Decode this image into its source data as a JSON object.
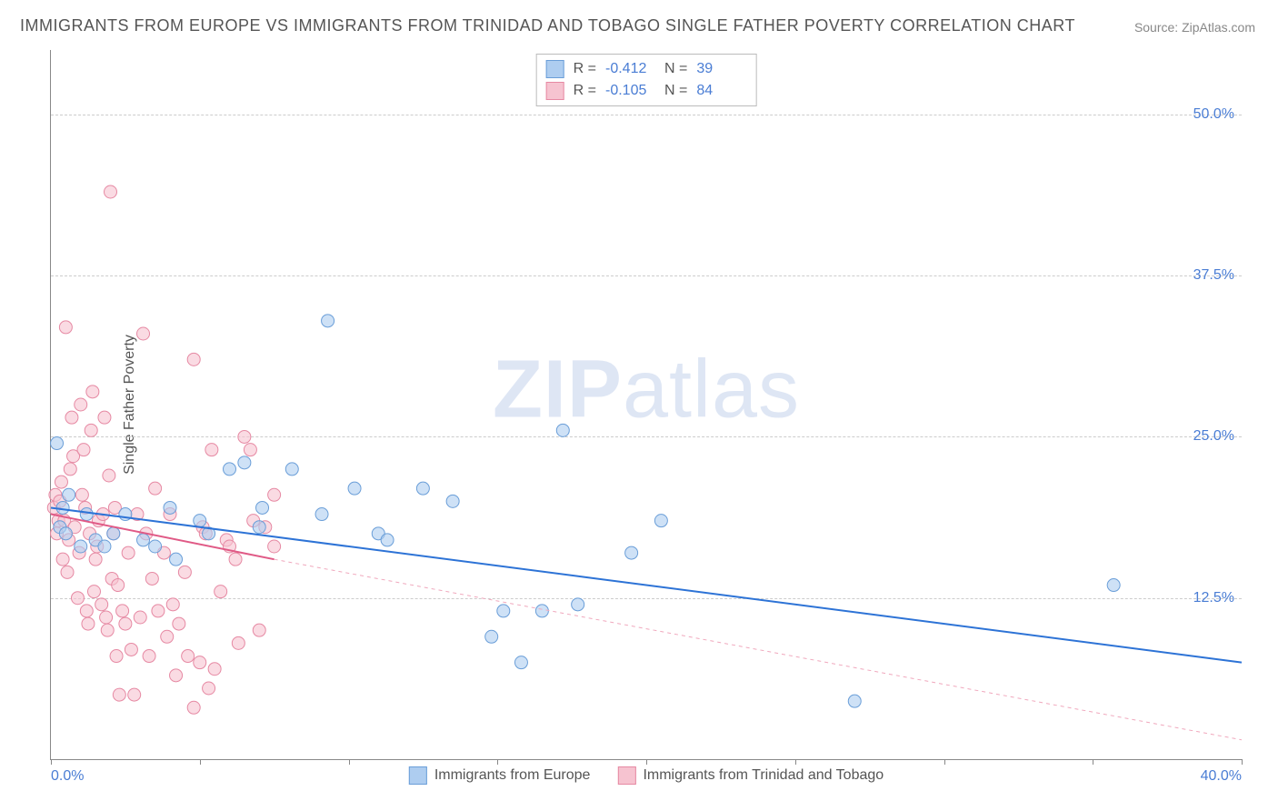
{
  "title": "IMMIGRANTS FROM EUROPE VS IMMIGRANTS FROM TRINIDAD AND TOBAGO SINGLE FATHER POVERTY CORRELATION CHART",
  "source": "Source: ZipAtlas.com",
  "ylabel": "Single Father Poverty",
  "watermark_bold": "ZIP",
  "watermark_light": "atlas",
  "chart": {
    "type": "scatter",
    "xlim": [
      0,
      40
    ],
    "ylim": [
      0,
      55
    ],
    "xticks": [
      0,
      5,
      10,
      15,
      20,
      25,
      30,
      35,
      40
    ],
    "xtick_labels_shown": {
      "0": "0.0%",
      "40": "40.0%"
    },
    "yticks": [
      12.5,
      25.0,
      37.5,
      50.0
    ],
    "ytick_labels": [
      "12.5%",
      "25.0%",
      "37.5%",
      "50.0%"
    ],
    "grid_color": "#cccccc",
    "background_color": "#ffffff",
    "series": [
      {
        "name": "Immigrants from Europe",
        "fill": "#aecdf0",
        "stroke": "#6a9ed8",
        "r_value": "-0.412",
        "n_value": "39",
        "marker_radius": 7,
        "line": {
          "x1": 0,
          "y1": 19.5,
          "x2": 40,
          "y2": 7.5,
          "color": "#2d73d6",
          "width": 2,
          "dash": "none"
        },
        "points": [
          [
            0.2,
            24.5
          ],
          [
            0.3,
            18
          ],
          [
            0.4,
            19.5
          ],
          [
            0.5,
            17.5
          ],
          [
            0.6,
            20.5
          ],
          [
            1.0,
            16.5
          ],
          [
            1.2,
            19
          ],
          [
            1.5,
            17
          ],
          [
            1.8,
            16.5
          ],
          [
            2.1,
            17.5
          ],
          [
            2.5,
            19
          ],
          [
            3.1,
            17
          ],
          [
            3.5,
            16.5
          ],
          [
            4.0,
            19.5
          ],
          [
            4.2,
            15.5
          ],
          [
            5.0,
            18.5
          ],
          [
            5.3,
            17.5
          ],
          [
            6.0,
            22.5
          ],
          [
            6.5,
            23
          ],
          [
            7.0,
            18
          ],
          [
            7.1,
            19.5
          ],
          [
            8.1,
            22.5
          ],
          [
            9.1,
            19
          ],
          [
            9.3,
            34
          ],
          [
            10.2,
            21
          ],
          [
            11.0,
            17.5
          ],
          [
            11.3,
            17
          ],
          [
            12.5,
            21
          ],
          [
            13.5,
            20
          ],
          [
            14.8,
            9.5
          ],
          [
            15.2,
            11.5
          ],
          [
            15.8,
            7.5
          ],
          [
            16.5,
            11.5
          ],
          [
            17.2,
            25.5
          ],
          [
            17.7,
            12
          ],
          [
            19.5,
            16
          ],
          [
            20.5,
            18.5
          ],
          [
            27.0,
            4.5
          ],
          [
            35.7,
            13.5
          ]
        ]
      },
      {
        "name": "Immigrants from Trinidad and Tobago",
        "fill": "#f6c3d0",
        "stroke": "#e689a3",
        "r_value": "-0.105",
        "n_value": "84",
        "marker_radius": 7,
        "line": {
          "x1": 0,
          "y1": 19.0,
          "x2": 7.5,
          "y2": 15.5,
          "color": "#e05a86",
          "width": 2,
          "dash": "none"
        },
        "line_ext": {
          "x1": 7.5,
          "y1": 15.5,
          "x2": 40,
          "y2": 1.5,
          "color": "#f0a8bd",
          "width": 1,
          "dash": "4,4"
        },
        "points": [
          [
            0.1,
            19.5
          ],
          [
            0.15,
            20.5
          ],
          [
            0.2,
            17.5
          ],
          [
            0.25,
            18.5
          ],
          [
            0.3,
            20
          ],
          [
            0.35,
            21.5
          ],
          [
            0.4,
            15.5
          ],
          [
            0.45,
            18.5
          ],
          [
            0.5,
            33.5
          ],
          [
            0.55,
            14.5
          ],
          [
            0.6,
            17
          ],
          [
            0.65,
            22.5
          ],
          [
            0.7,
            26.5
          ],
          [
            0.75,
            23.5
          ],
          [
            0.8,
            18
          ],
          [
            0.9,
            12.5
          ],
          [
            0.95,
            16
          ],
          [
            1.0,
            27.5
          ],
          [
            1.05,
            20.5
          ],
          [
            1.1,
            24
          ],
          [
            1.15,
            19.5
          ],
          [
            1.2,
            11.5
          ],
          [
            1.25,
            10.5
          ],
          [
            1.3,
            17.5
          ],
          [
            1.35,
            25.5
          ],
          [
            1.4,
            28.5
          ],
          [
            1.45,
            13
          ],
          [
            1.5,
            15.5
          ],
          [
            1.55,
            16.5
          ],
          [
            1.6,
            18.5
          ],
          [
            1.7,
            12
          ],
          [
            1.75,
            19
          ],
          [
            1.8,
            26.5
          ],
          [
            1.85,
            11
          ],
          [
            1.9,
            10
          ],
          [
            1.95,
            22
          ],
          [
            2.0,
            44
          ],
          [
            2.05,
            14
          ],
          [
            2.1,
            17.5
          ],
          [
            2.15,
            19.5
          ],
          [
            2.2,
            8
          ],
          [
            2.25,
            13.5
          ],
          [
            2.3,
            5
          ],
          [
            2.4,
            11.5
          ],
          [
            2.5,
            10.5
          ],
          [
            2.6,
            16
          ],
          [
            2.7,
            8.5
          ],
          [
            2.8,
            5
          ],
          [
            2.9,
            19
          ],
          [
            3.0,
            11
          ],
          [
            3.1,
            33
          ],
          [
            3.2,
            17.5
          ],
          [
            3.3,
            8
          ],
          [
            3.4,
            14
          ],
          [
            3.5,
            21
          ],
          [
            3.6,
            11.5
          ],
          [
            3.8,
            16
          ],
          [
            3.9,
            9.5
          ],
          [
            4.0,
            19
          ],
          [
            4.1,
            12
          ],
          [
            4.2,
            6.5
          ],
          [
            4.3,
            10.5
          ],
          [
            4.5,
            14.5
          ],
          [
            4.6,
            8
          ],
          [
            4.8,
            4
          ],
          [
            4.8,
            31
          ],
          [
            5.0,
            7.5
          ],
          [
            5.1,
            18
          ],
          [
            5.2,
            17.5
          ],
          [
            5.3,
            5.5
          ],
          [
            5.4,
            24
          ],
          [
            5.5,
            7
          ],
          [
            5.7,
            13
          ],
          [
            5.9,
            17
          ],
          [
            6.0,
            16.5
          ],
          [
            6.2,
            15.5
          ],
          [
            6.3,
            9
          ],
          [
            6.5,
            25
          ],
          [
            6.7,
            24
          ],
          [
            6.8,
            18.5
          ],
          [
            7.0,
            10
          ],
          [
            7.2,
            18
          ],
          [
            7.5,
            16.5
          ],
          [
            7.5,
            20.5
          ]
        ]
      }
    ]
  },
  "legend_top": {
    "r_label": "R =",
    "n_label": "N ="
  },
  "colors": {
    "axis_label": "#4a7dd4",
    "title": "#555555",
    "blue_line": "#2d73d6",
    "pink_line": "#e05a86"
  }
}
